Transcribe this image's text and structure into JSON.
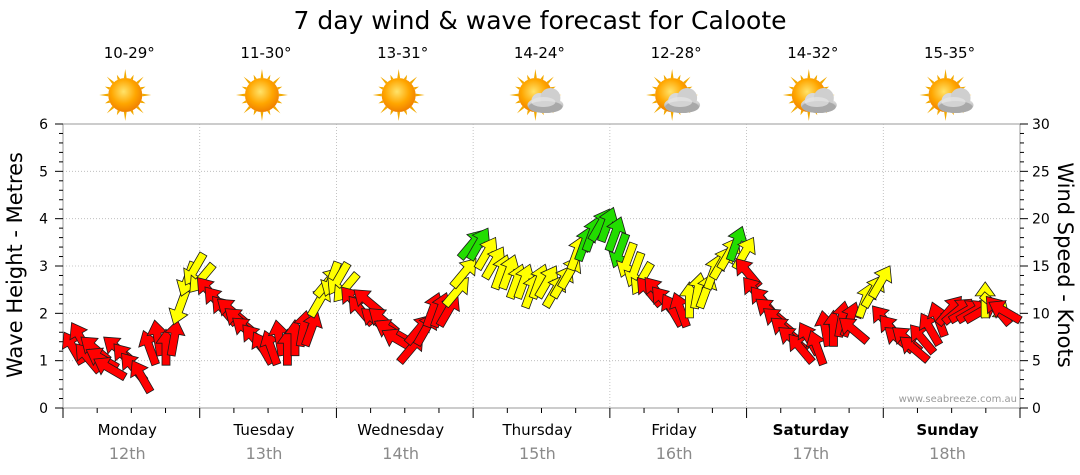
{
  "chart_data": {
    "type": "scatter",
    "title": "7 day wind & wave forecast for Caloote",
    "ylabel_left": "Wave Height - Metres",
    "ylabel_right": "Wind Speed - Knots",
    "y_left_range": [
      0,
      6
    ],
    "y_right_range": [
      0,
      30
    ],
    "y_left_ticks": [
      "0",
      "1",
      "2",
      "3",
      "4",
      "5",
      "6"
    ],
    "y_right_ticks": [
      "0",
      "5",
      "10",
      "15",
      "20",
      "25",
      "30"
    ],
    "grid": true,
    "watermark": "www.seabreeze.com.au",
    "days": [
      {
        "name": "Monday",
        "date": "12th",
        "temp": "10-29°",
        "icon": "sun-icon",
        "bold": false
      },
      {
        "name": "Tuesday",
        "date": "13th",
        "temp": "11-30°",
        "icon": "sun-icon",
        "bold": false
      },
      {
        "name": "Wednesday",
        "date": "14th",
        "temp": "13-31°",
        "icon": "sun-icon",
        "bold": false
      },
      {
        "name": "Thursday",
        "date": "15th",
        "temp": "14-24°",
        "icon": "sun-cloud-icon",
        "bold": false
      },
      {
        "name": "Friday",
        "date": "16th",
        "temp": "12-28°",
        "icon": "sun-cloud-icon",
        "bold": false
      },
      {
        "name": "Saturday",
        "date": "17th",
        "temp": "14-32°",
        "icon": "sun-cloud-icon",
        "bold": true
      },
      {
        "name": "Sunday",
        "date": "18th",
        "temp": "15-35°",
        "icon": "sun-cloud-icon",
        "bold": true
      }
    ],
    "wind_knots": [
      6,
      7,
      5,
      6,
      5,
      4,
      6,
      5,
      4,
      3,
      6,
      7,
      6,
      7,
      11,
      14,
      15,
      14,
      12,
      11,
      10,
      10,
      9,
      8,
      7,
      6,
      6,
      7,
      6,
      7,
      8,
      8,
      11,
      13,
      14,
      14,
      13,
      11,
      10,
      11,
      9,
      9,
      8,
      7,
      6,
      8,
      8,
      10,
      10,
      10,
      12,
      14,
      17,
      17,
      16,
      15,
      14,
      14,
      13,
      13,
      12,
      13,
      13,
      12,
      13,
      14,
      16,
      17,
      18,
      19,
      19,
      18,
      17,
      16,
      15,
      14,
      12,
      12,
      11,
      10,
      10,
      11,
      12,
      12,
      14,
      15,
      16,
      17,
      16,
      14,
      12,
      11,
      10,
      9,
      8,
      7,
      6,
      7,
      6,
      8,
      8,
      9,
      9,
      8,
      11,
      12,
      13,
      9,
      8,
      7,
      7,
      6,
      7,
      8,
      9,
      10,
      10,
      10,
      10,
      10,
      11,
      11,
      10,
      10
    ],
    "wind_dir_deg": [
      330,
      330,
      320,
      310,
      300,
      300,
      310,
      320,
      320,
      330,
      340,
      350,
      0,
      10,
      200,
      200,
      210,
      220,
      320,
      320,
      320,
      310,
      310,
      310,
      320,
      330,
      340,
      350,
      0,
      0,
      10,
      20,
      30,
      40,
      200,
      210,
      220,
      320,
      320,
      310,
      310,
      310,
      300,
      300,
      40,
      40,
      30,
      20,
      20,
      30,
      40,
      40,
      40,
      30,
      30,
      30,
      20,
      20,
      20,
      20,
      20,
      20,
      30,
      30,
      30,
      30,
      20,
      20,
      20,
      30,
      20,
      20,
      200,
      200,
      200,
      210,
      320,
      320,
      320,
      330,
      340,
      0,
      10,
      20,
      20,
      30,
      30,
      20,
      30,
      320,
      320,
      320,
      310,
      310,
      310,
      310,
      320,
      330,
      340,
      350,
      0,
      10,
      20,
      310,
      20,
      30,
      30,
      320,
      320,
      310,
      310,
      310,
      320,
      330,
      340,
      40,
      50,
      60,
      60,
      60,
      0,
      130,
      320,
      300
    ]
  }
}
